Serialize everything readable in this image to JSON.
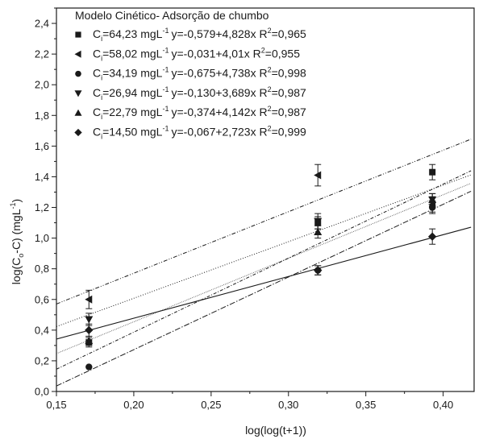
{
  "chart_data": {
    "type": "scatter",
    "title": "Modelo Cinético- Adsorção de chumbo",
    "xlabel": "log(log(t+1))",
    "ylabel": "log(C_o-C) (mgL^-1)",
    "xlim": [
      0.15,
      0.42
    ],
    "ylim": [
      0.0,
      2.5
    ],
    "xticks": [
      "0,15",
      "0,20",
      "0,25",
      "0,30",
      "0,35",
      "0,40"
    ],
    "xtick_values": [
      0.15,
      0.2,
      0.25,
      0.3,
      0.35,
      0.4
    ],
    "yticks": [
      "0,0",
      "0,2",
      "0,4",
      "0,6",
      "0,8",
      "1,0",
      "1,2",
      "1,4",
      "1,6",
      "1,8",
      "2,0",
      "2,2",
      "2,4"
    ],
    "ytick_values": [
      0.0,
      0.2,
      0.4,
      0.6,
      0.8,
      1.0,
      1.2,
      1.4,
      1.6,
      1.8,
      2.0,
      2.2,
      2.4
    ],
    "legend_position": "top-left",
    "grid": false,
    "series": [
      {
        "label_conc": "=64,23 mgL",
        "label_eq": "y=-0,579+4,828x R",
        "label_r2": "=0,965",
        "marker": "square",
        "x": [
          0.171,
          0.319,
          0.393
        ],
        "y": [
          0.32,
          1.1,
          1.43
        ],
        "err": [
          0.03,
          0.04,
          0.05
        ],
        "fit": {
          "intercept": -0.579,
          "slope": 4.828
        },
        "line_style": "4,2,1,2"
      },
      {
        "label_conc": "=58,02 mgL",
        "label_eq": "y=-0,031+4,01x R",
        "label_r2": "=0,955",
        "marker": "triangle-left",
        "x": [
          0.171,
          0.319,
          0.393
        ],
        "y": [
          0.6,
          1.41,
          1.22
        ],
        "err": [
          0.06,
          0.07,
          0.05
        ],
        "fit": {
          "intercept": -0.031,
          "slope": 4.01
        },
        "line_style": "5,2,1,2,1,2"
      },
      {
        "label_conc": "=34,19 mgL",
        "label_eq": "y=-0,675+4,738x R",
        "label_r2": "=0,998",
        "marker": "circle",
        "x": [
          0.171,
          0.319,
          0.393
        ],
        "y": [
          0.16,
          0.79,
          1.2
        ],
        "err": [
          0.0,
          0.03,
          0.04
        ],
        "fit": {
          "intercept": -0.675,
          "slope": 4.738
        },
        "line_style": "7,2,1.5,2"
      },
      {
        "label_conc": "=26,94 mgL",
        "label_eq": "y=-0,130+3,689x R",
        "label_r2": "=0,987",
        "marker": "triangle-down",
        "x": [
          0.171,
          0.319,
          0.393
        ],
        "y": [
          0.47,
          1.11,
          1.25
        ],
        "err": [
          0.04,
          0.05,
          0.04
        ],
        "fit": {
          "intercept": -0.13,
          "slope": 3.689
        },
        "line_style": "1,2"
      },
      {
        "label_conc": "=22,79 mgL",
        "label_eq": "y=-0,374+4,142x R",
        "label_r2": "=0,987",
        "marker": "triangle-up",
        "x": [
          0.171,
          0.319,
          0.393
        ],
        "y": [
          0.33,
          1.04,
          1.25
        ],
        "err": [
          0.03,
          0.04,
          0.04
        ],
        "fit": {
          "intercept": -0.374,
          "slope": 4.142
        },
        "line_style": "0.6,1.4"
      },
      {
        "label_conc": "=14,50 mgL",
        "label_eq": "y=-0,067+2,723x R",
        "label_r2": "=0,999",
        "marker": "diamond",
        "x": [
          0.171,
          0.319,
          0.393
        ],
        "y": [
          0.4,
          0.79,
          1.01
        ],
        "err": [
          0.04,
          0.03,
          0.05
        ],
        "fit": {
          "intercept": -0.067,
          "slope": 2.723
        },
        "line_style": ""
      }
    ],
    "legend_c": "C",
    "legend_sub": "i",
    "legend_sup_unit": "-1",
    "legend_sup_r": "2",
    "ylabel_parts": {
      "a": "log(C",
      "sub1": "o",
      "b": "-C) (mgL",
      "sup": "-1",
      "c": ")"
    }
  },
  "colors": {
    "ink": "#1a1a1a"
  }
}
